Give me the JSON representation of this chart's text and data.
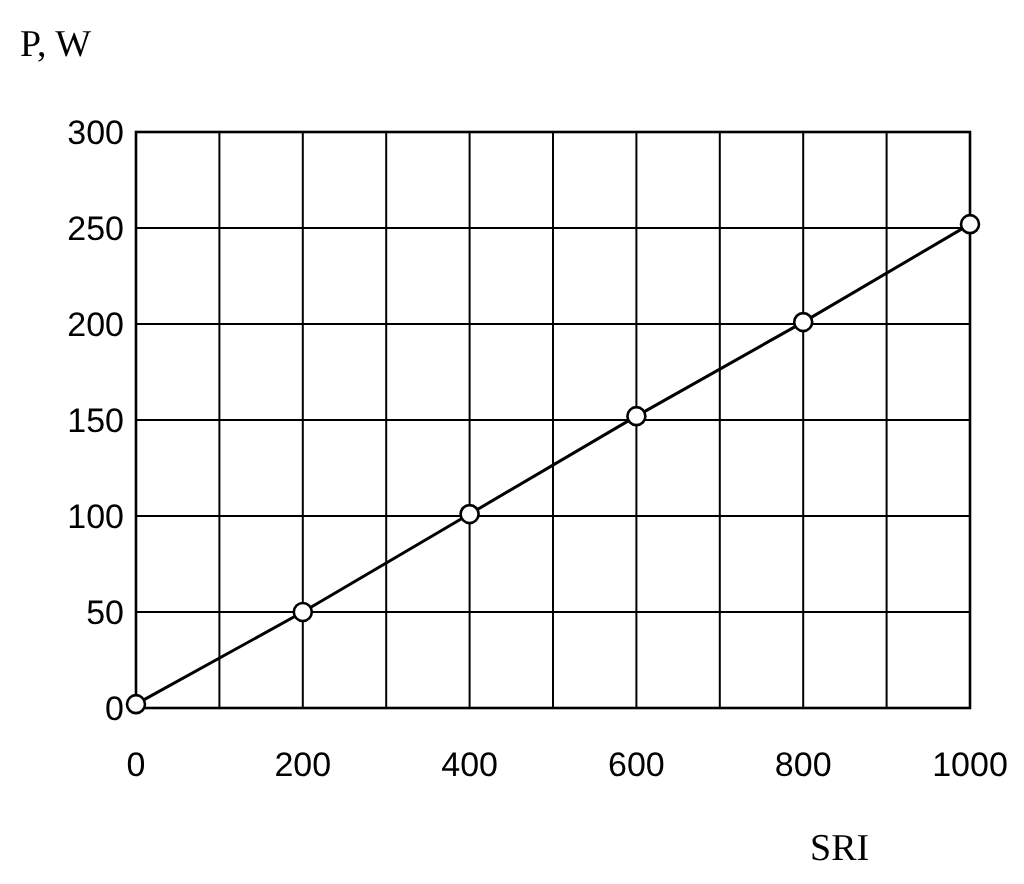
{
  "chart_data": {
    "type": "line",
    "xlabel": "SRI",
    "ylabel": "P, W",
    "x": [
      0,
      200,
      400,
      600,
      800,
      1000
    ],
    "series": [
      {
        "color": "#000000",
        "values": [
          2,
          50,
          101,
          152,
          201,
          252
        ]
      }
    ],
    "xlim": [
      0,
      1000
    ],
    "ylim": [
      0,
      300
    ],
    "xticks": [
      0,
      {
        "value": 100,
        "label": null
      },
      200,
      {
        "value": 300,
        "label": null
      },
      400,
      {
        "value": 500,
        "label": null
      },
      600,
      {
        "value": 700,
        "label": null
      },
      800,
      {
        "value": 900,
        "label": null
      },
      1000
    ],
    "yticks": [
      0,
      50,
      100,
      150,
      200,
      250,
      300
    ],
    "grid": true,
    "marker": "circle",
    "line_style": "solid"
  }
}
